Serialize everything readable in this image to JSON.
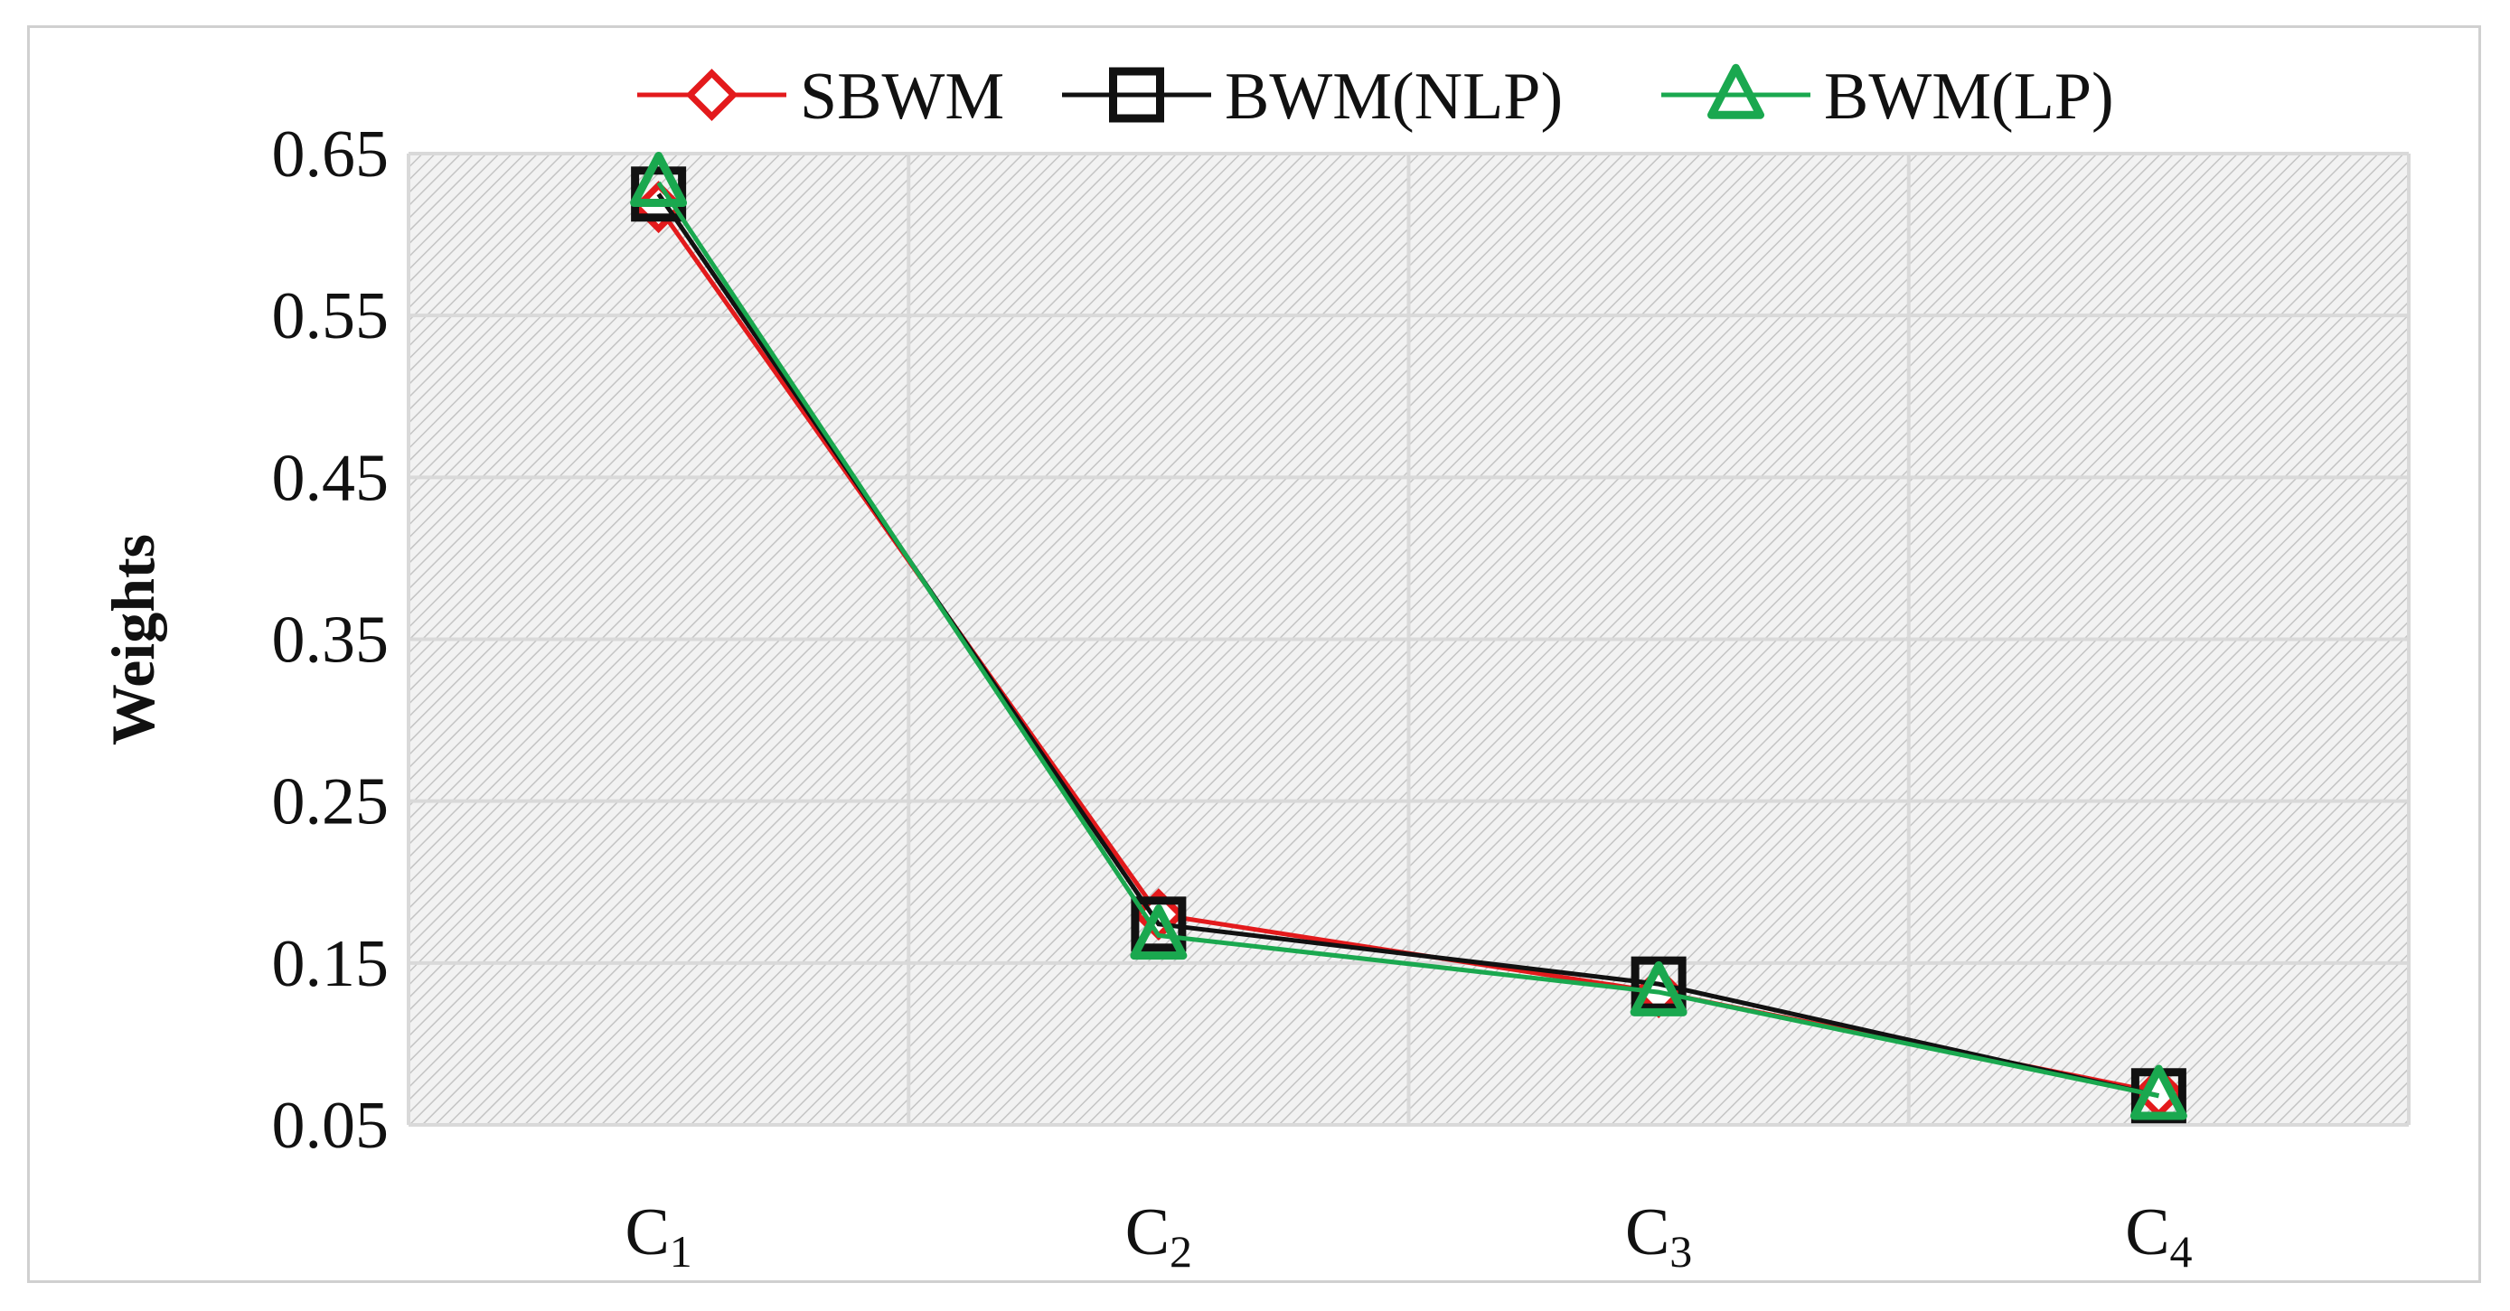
{
  "chart_data": {
    "type": "line",
    "categories": [
      {
        "base": "C",
        "sub": "1"
      },
      {
        "base": "C",
        "sub": "2"
      },
      {
        "base": "C",
        "sub": "3"
      },
      {
        "base": "C",
        "sub": "4"
      }
    ],
    "ylabel": "Weights",
    "xlabel": "",
    "ylim": [
      0.05,
      0.65
    ],
    "yticks": [
      "0.65",
      "0.55",
      "0.45",
      "0.35",
      "0.25",
      "0.15",
      "0.05"
    ],
    "grid": true,
    "legend_position": "top",
    "series": [
      {
        "name": "SBWM",
        "values": [
          0.617,
          0.18,
          0.132,
          0.07
        ],
        "color": "#e31a1c",
        "marker": "diamond"
      },
      {
        "name": "BWM(NLP)",
        "values": [
          0.625,
          0.174,
          0.137,
          0.068
        ],
        "color": "#111111",
        "marker": "square"
      },
      {
        "name": "BWM(LP)",
        "values": [
          0.632,
          0.167,
          0.132,
          0.068
        ],
        "color": "#1aa84f",
        "marker": "triangle"
      }
    ]
  }
}
